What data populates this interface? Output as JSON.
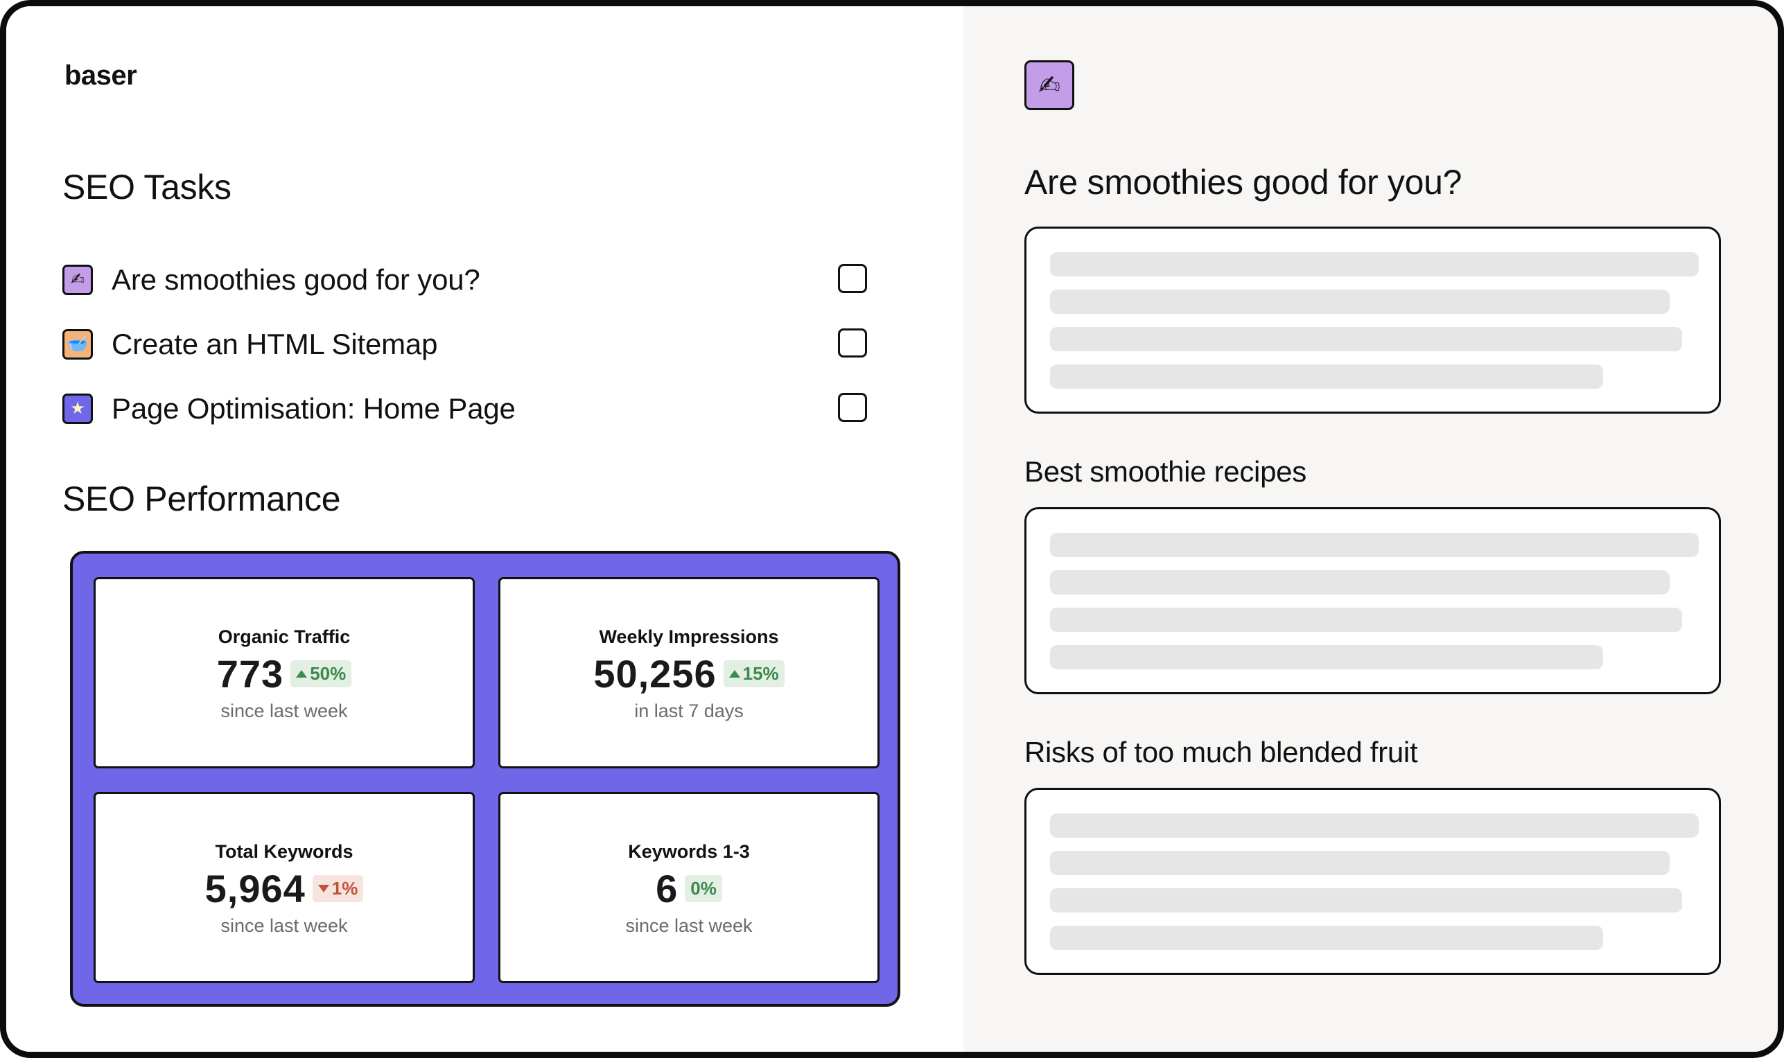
{
  "brand": {
    "logo_text": "baser"
  },
  "tasks_section": {
    "title": "SEO Tasks",
    "items": [
      {
        "label": "Are smoothies good for you?",
        "icon": "writing-hand-icon",
        "glyph": "✍",
        "color": "#c49de8",
        "checked": false
      },
      {
        "label": "Create an HTML Sitemap",
        "icon": "bowl-icon",
        "glyph": "🥣",
        "color": "#f3b37a",
        "checked": false
      },
      {
        "label": "Page Optimisation: Home Page",
        "icon": "star-icon",
        "glyph": "★",
        "color": "#6f66e8",
        "checked": false
      }
    ]
  },
  "performance_section": {
    "title": "SEO Performance",
    "panel_color": "#6f66e8",
    "stats": [
      {
        "title": "Organic Traffic",
        "value": "773",
        "change": "50%",
        "direction": "up",
        "subtitle": "since last week"
      },
      {
        "title": "Weekly Impressions",
        "value": "50,256",
        "change": "15%",
        "direction": "up",
        "subtitle": "in last 7 days"
      },
      {
        "title": "Total Keywords",
        "value": "5,964",
        "change": "1%",
        "direction": "down",
        "subtitle": "since last week"
      },
      {
        "title": "Keywords 1-3",
        "value": "6",
        "change": "0%",
        "direction": "flat",
        "subtitle": "since last week"
      }
    ]
  },
  "article": {
    "icon": "writing-hand-icon",
    "icon_glyph": "✍",
    "icon_color": "#c49de8",
    "title": "Are smoothies good for you?",
    "sections": [
      {
        "heading": ""
      },
      {
        "heading": "Best smoothie recipes"
      },
      {
        "heading": "Risks of too much blended fruit"
      }
    ]
  }
}
